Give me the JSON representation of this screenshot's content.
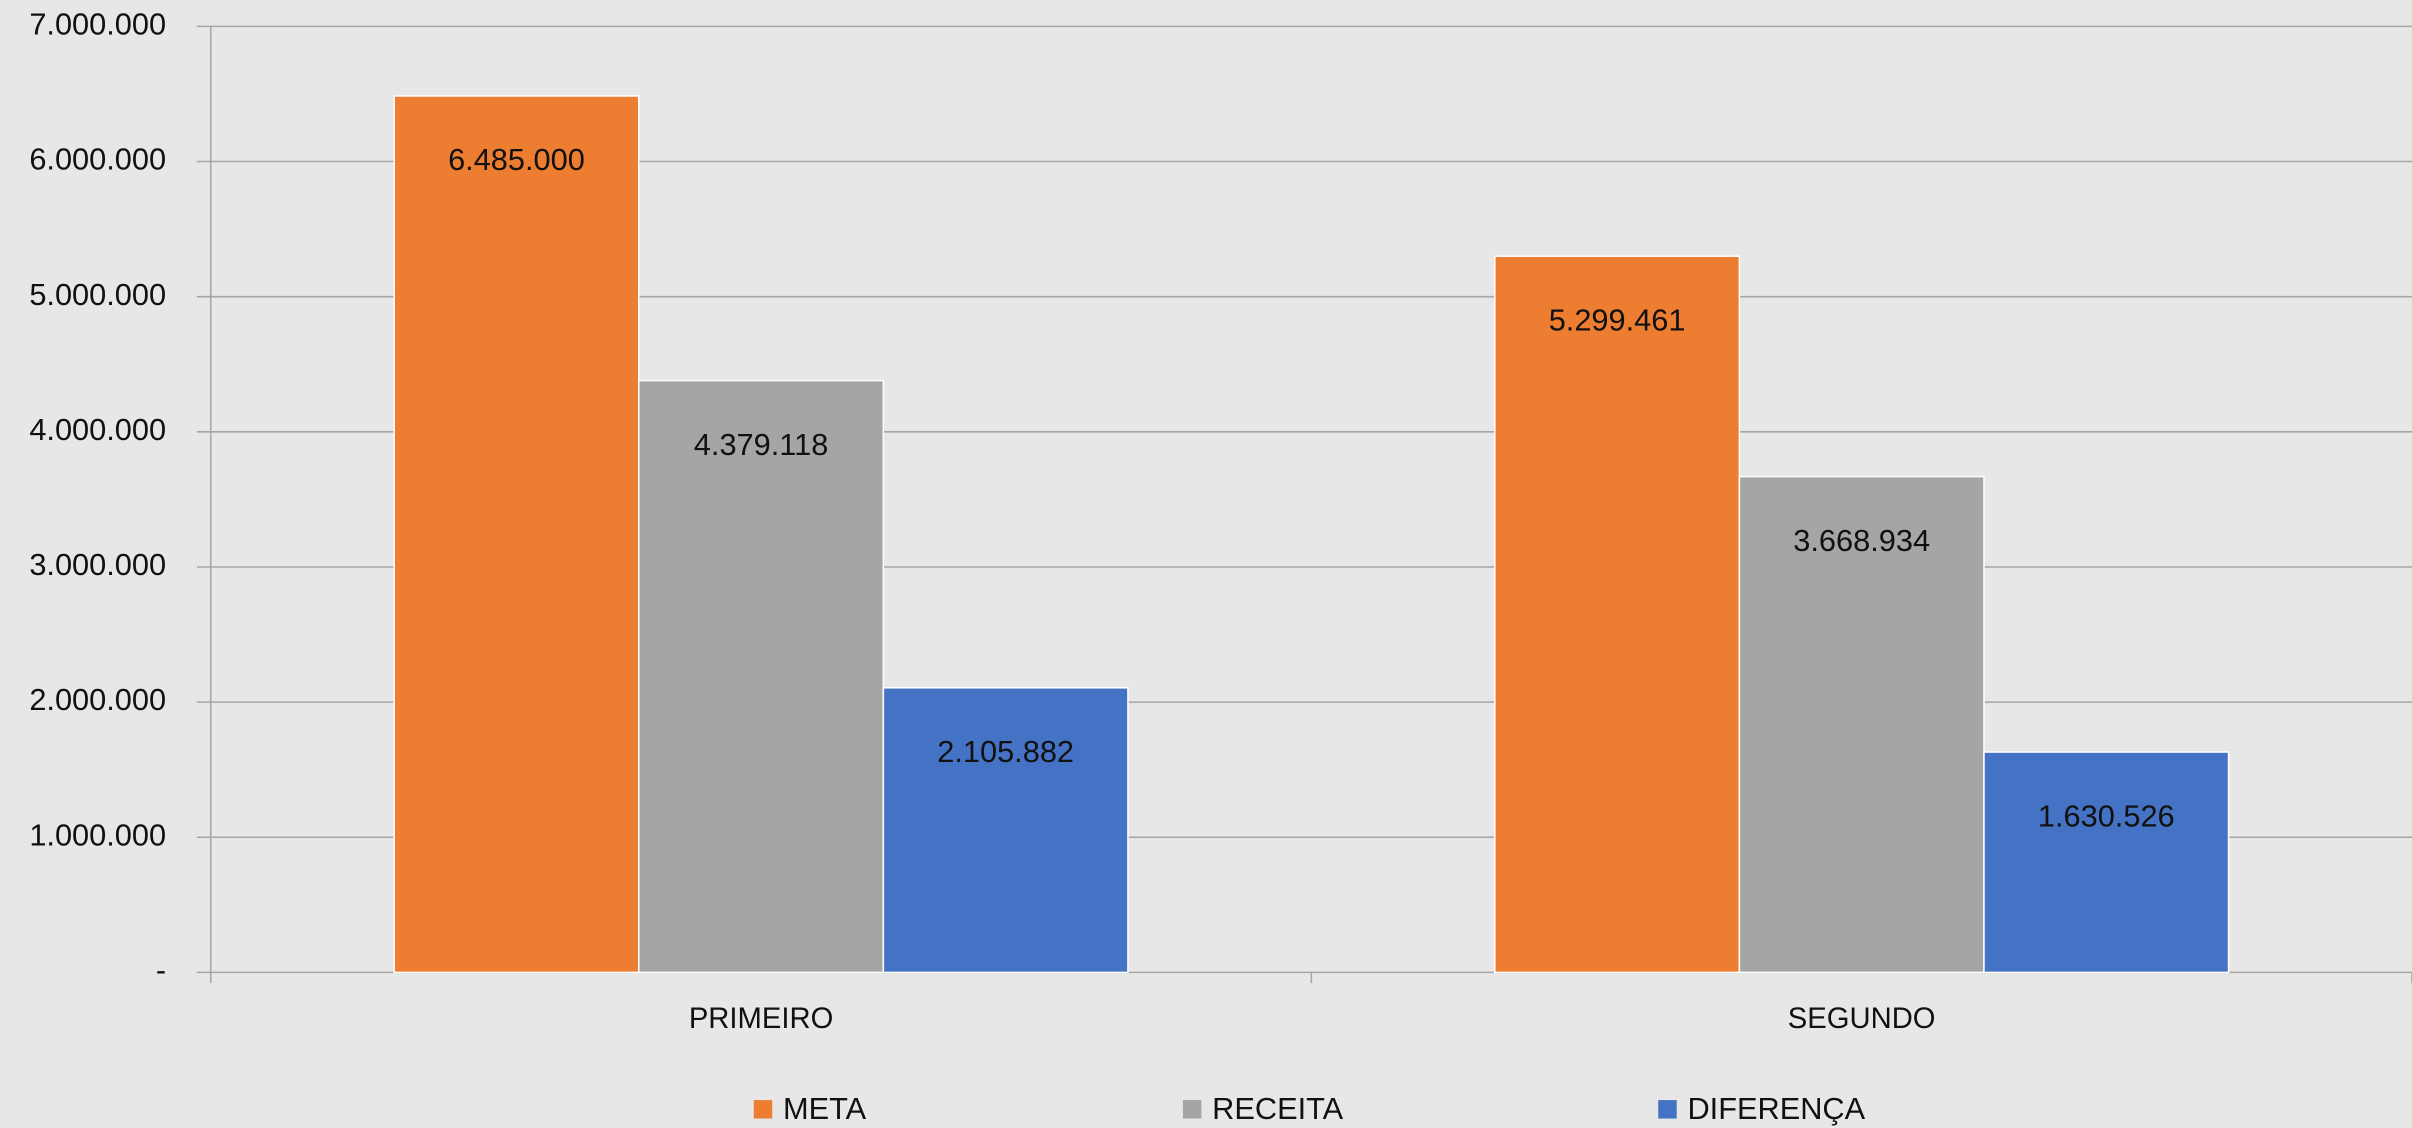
{
  "chart_data": {
    "type": "bar",
    "categories": [
      "PRIMEIRO",
      "SEGUNDO"
    ],
    "series": [
      {
        "name": "META",
        "color": "#ed7d31",
        "values": [
          6485000,
          5299461
        ],
        "value_labels": [
          "6.485.000",
          "5.299.461"
        ]
      },
      {
        "name": "RECEITA",
        "color": "#a5a5a5",
        "values": [
          4379118,
          3668934
        ],
        "value_labels": [
          "4.379.118",
          "3.668.934"
        ]
      },
      {
        "name": "DIFERENÇA",
        "color": "#4472c4",
        "values": [
          2105882,
          1630526
        ],
        "value_labels": [
          "2.105.882",
          "1.630.526"
        ]
      }
    ],
    "ylim": [
      0,
      7000000
    ],
    "yticks": [
      {
        "value": 0,
        "label": "-"
      },
      {
        "value": 1000000,
        "label": "1.000.000"
      },
      {
        "value": 2000000,
        "label": "2.000.000"
      },
      {
        "value": 3000000,
        "label": "3.000.000"
      },
      {
        "value": 4000000,
        "label": "4.000.000"
      },
      {
        "value": 5000000,
        "label": "5.000.000"
      },
      {
        "value": 6000000,
        "label": "6.000.000"
      },
      {
        "value": 7000000,
        "label": "7.000.000"
      }
    ],
    "grid": true,
    "legend": "bottom"
  }
}
